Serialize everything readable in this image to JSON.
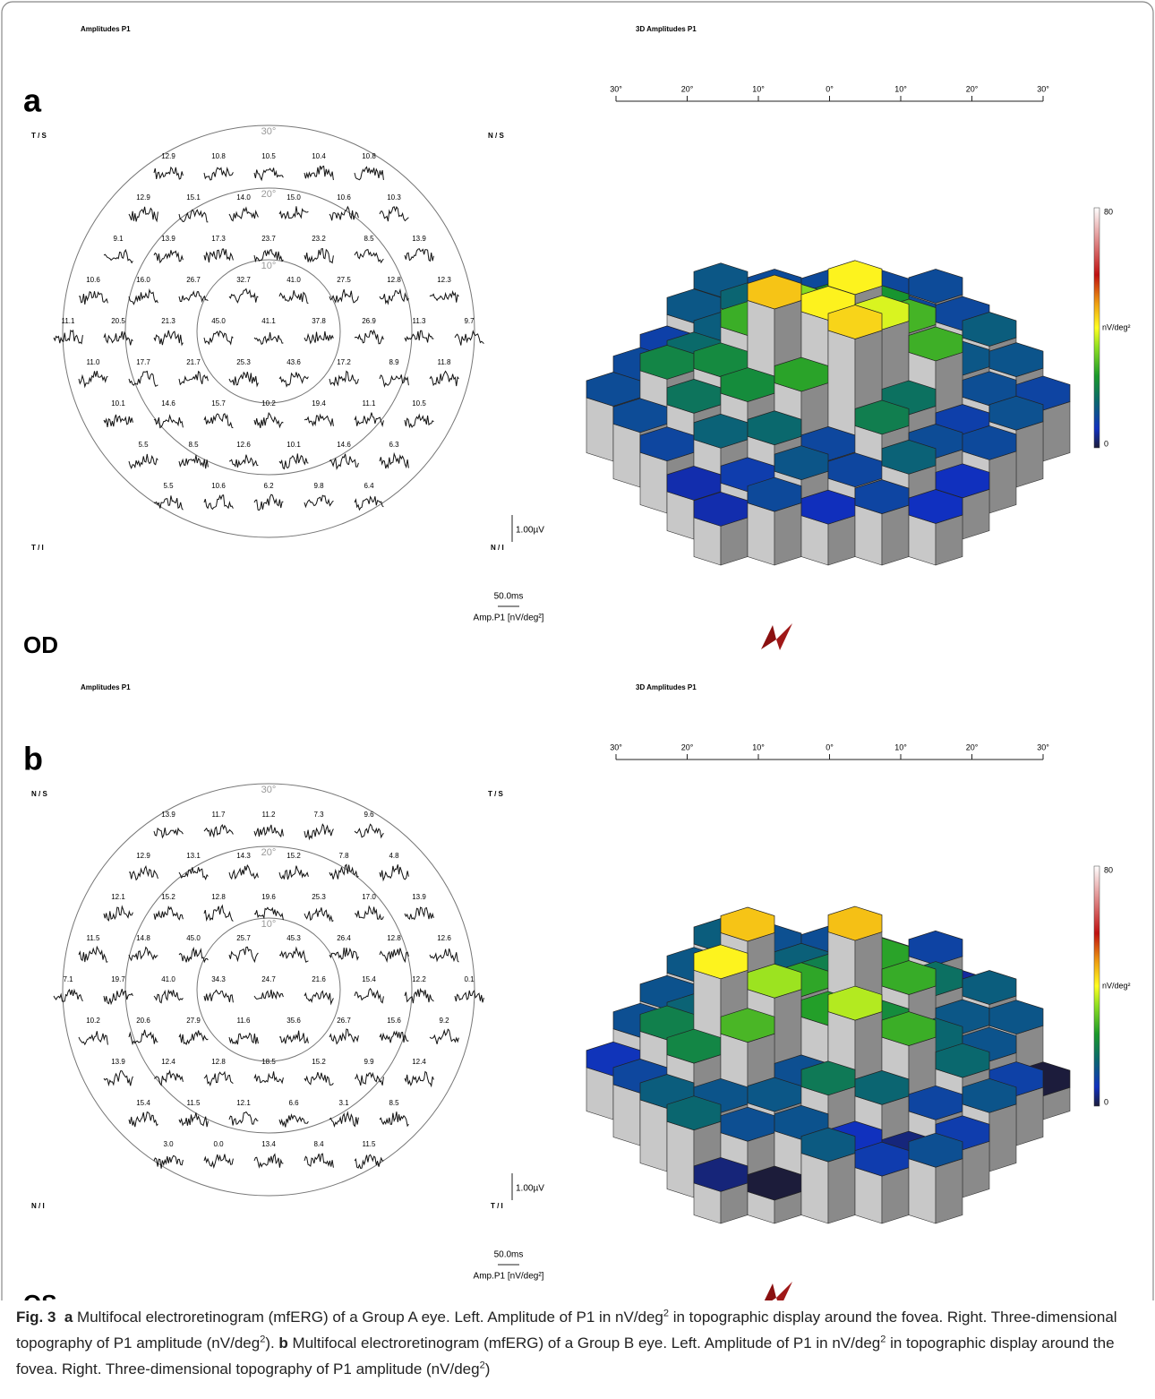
{
  "figure": {
    "panels": [
      {
        "letter": "a",
        "eye": "OD",
        "left": {
          "title": "Amplitudes P1",
          "corners": [
            "T / S",
            "N / S",
            "T / I",
            "N / I"
          ],
          "rings": [
            "30°",
            "20°",
            "10°"
          ],
          "rows": [
            [
              "12.9",
              "10.8",
              "10.5",
              "10.4",
              "10.8"
            ],
            [
              "12.9",
              "15.1",
              "14.0",
              "15.0",
              "10.6",
              "10.3"
            ],
            [
              "9.1",
              "13.9",
              "17.3",
              "23.7",
              "23.2",
              "8.5",
              "13.9"
            ],
            [
              "10.6",
              "16.0",
              "26.7",
              "32.7",
              "41.0",
              "27.5",
              "12.8",
              "12.3"
            ],
            [
              "11.1",
              "20.5",
              "21.3",
              "45.0",
              "41.1",
              "37.8",
              "26.9",
              "11.3",
              "9.7"
            ],
            [
              "11.0",
              "17.7",
              "21.7",
              "25.3",
              "43.6",
              "17.2",
              "8.9",
              "11.8"
            ],
            [
              "10.1",
              "14.6",
              "15.7",
              "10.2",
              "19.4",
              "11.1",
              "10.5"
            ],
            [
              "5.5",
              "8.5",
              "12.6",
              "10.1",
              "14.6",
              "6.3"
            ],
            [
              "5.5",
              "10.6",
              "6.2",
              "9.8",
              "6.4"
            ]
          ],
          "scale_amplitude": "1.00µV",
          "scale_time": "50.0ms",
          "unit_label": "Amp.P1 [nV/deg²]"
        },
        "right": {
          "title": "3D Amplitudes P1",
          "axis_ticks": [
            "30°",
            "20°",
            "10°",
            "0°",
            "10°",
            "20°",
            "30°"
          ],
          "colorbar": {
            "max": "80",
            "unit": "nV/deg²",
            "min": "0"
          }
        }
      },
      {
        "letter": "b",
        "eye": "OS",
        "left": {
          "title": "Amplitudes P1",
          "corners": [
            "N / S",
            "T / S",
            "N / I",
            "T / I"
          ],
          "rings": [
            "30°",
            "20°",
            "10°"
          ],
          "rows": [
            [
              "13.9",
              "11.7",
              "11.2",
              "7.3",
              "9.6"
            ],
            [
              "12.9",
              "13.1",
              "14.3",
              "15.2",
              "7.8",
              "4.8"
            ],
            [
              "12.1",
              "15.2",
              "12.8",
              "19.6",
              "25.3",
              "17.0",
              "13.9"
            ],
            [
              "11.5",
              "14.8",
              "45.0",
              "25.7",
              "45.3",
              "26.4",
              "12.8",
              "12.6"
            ],
            [
              "7.1",
              "19.7",
              "41.0",
              "34.3",
              "24.7",
              "21.6",
              "15.4",
              "12.2",
              "0.1"
            ],
            [
              "10.2",
              "20.6",
              "27.9",
              "11.6",
              "35.6",
              "26.7",
              "15.6",
              "9.2"
            ],
            [
              "13.9",
              "12.4",
              "12.8",
              "18.5",
              "15.2",
              "9.9",
              "12.4"
            ],
            [
              "15.4",
              "11.5",
              "12.1",
              "6.6",
              "3.1",
              "8.5"
            ],
            [
              "3.0",
              "0.0",
              "13.4",
              "8.4",
              "11.5"
            ]
          ],
          "scale_amplitude": "1.00µV",
          "scale_time": "50.0ms",
          "unit_label": "Amp.P1 [nV/deg²]"
        },
        "right": {
          "title": "3D Amplitudes P1",
          "axis_ticks": [
            "30°",
            "20°",
            "10°",
            "0°",
            "10°",
            "20°",
            "30°"
          ],
          "colorbar": {
            "max": "80",
            "unit": "nV/deg²",
            "min": "0"
          }
        }
      }
    ],
    "caption": [
      "Fig. 3",
      "a",
      " Multifocal electroretinogram (mfERG) of a Group A eye. Left. Amplitude of P1 in nV/deg",
      "2",
      " in topographic display around the fovea. Right. Three-dimensional topography of P1 amplitude (nV/deg",
      "2",
      "). ",
      "b",
      " Multifocal electroretinogram (mfERG) of a Group B eye. Left. Amplitude of P1 in nV/deg",
      "2",
      " in topographic display around the fovea. Right. Three-dimensional topography of P1 amplitude (nV/deg",
      "2",
      ")"
    ]
  }
}
